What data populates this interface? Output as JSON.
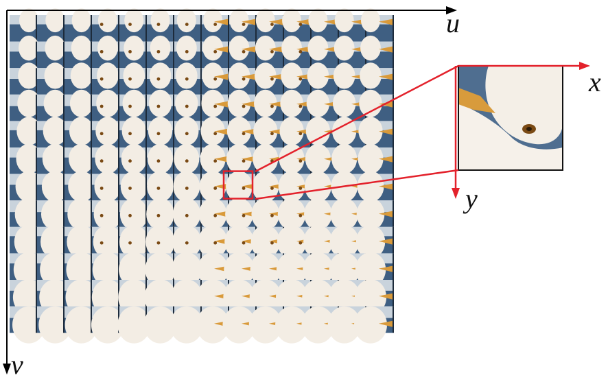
{
  "axes": {
    "u_label": "u",
    "v_label": "v",
    "x_label": "x",
    "y_label": "y"
  },
  "grid": {
    "rows": 12,
    "cols": 14,
    "highlight_row": 6,
    "highlight_col": 8
  },
  "colors": {
    "axis": "#000000",
    "highlight": "#e3212b",
    "sky": "#c9d3dc",
    "sea": "#3f5f82",
    "feather": "#f3ede4",
    "beak": "#d99a3a",
    "eye": "#7a4a14"
  },
  "icons": [
    "light-field-grid",
    "zoomed-subaperture-image",
    "u-axis-arrow",
    "v-axis-arrow",
    "x-axis-arrow",
    "y-axis-arrow"
  ]
}
